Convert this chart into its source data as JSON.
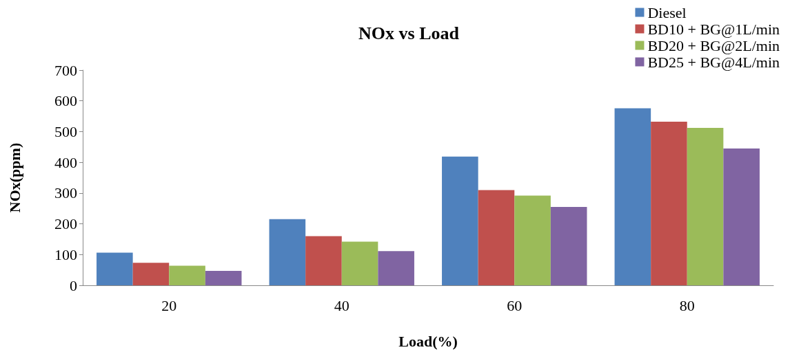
{
  "chart_data": {
    "type": "bar",
    "title": "NOx vs Load",
    "xlabel": "Load(%)",
    "ylabel": "NOx(ppm)",
    "categories": [
      "20",
      "40",
      "60",
      "80"
    ],
    "series": [
      {
        "name": "Diesel",
        "color": "#4f81bd",
        "values": [
          106,
          215,
          419,
          576
        ]
      },
      {
        "name": "BD10 + BG@1L/min",
        "color": "#c0504d",
        "values": [
          73,
          160,
          310,
          532
        ]
      },
      {
        "name": "BD20 + BG@2L/min",
        "color": "#9bbb59",
        "values": [
          64,
          142,
          292,
          512
        ]
      },
      {
        "name": "BD25 + BG@4L/min",
        "color": "#8064a2",
        "values": [
          47,
          111,
          255,
          445
        ]
      }
    ],
    "ylim": [
      0,
      700
    ],
    "yticks": [
      0,
      100,
      200,
      300,
      400,
      500,
      600,
      700
    ],
    "grid": false,
    "legend": "top right"
  }
}
